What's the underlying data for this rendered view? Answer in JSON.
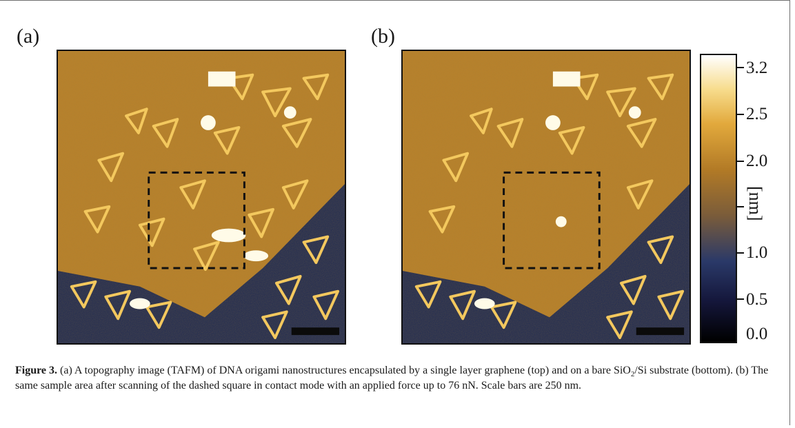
{
  "figure": {
    "panels": [
      {
        "id": "a",
        "label": "(a)"
      },
      {
        "id": "b",
        "label": "(b)"
      }
    ],
    "colorbar": {
      "unit": "[nm]",
      "ticks": [
        "3.2",
        "2.5",
        "2.0",
        "1.0",
        "0.5",
        "0.0"
      ],
      "range": [
        0.0,
        3.2
      ]
    },
    "caption": {
      "lead": "Figure 3.",
      "part1": " (a) A topography image (TAFM) of DNA origami nanostructures encapsulated by a single layer graphene (top) and on a bare SiO",
      "subscript": "2",
      "part2": "/Si substrate (bottom). (b) The same sample area after scanning of the dashed square in contact mode with an applied force up to 76 nN. Scale bars are 250 nm."
    },
    "colors": {
      "graphene": "#b9812a",
      "substrate": "#1f2a52",
      "origami": "#f3c85e",
      "highlight": "#fffbe8"
    }
  }
}
